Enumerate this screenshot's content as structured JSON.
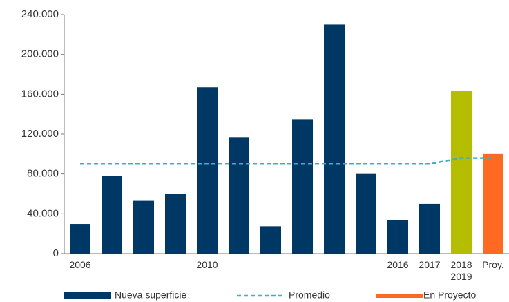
{
  "chart_data": {
    "type": "bar",
    "categories": [
      "2006",
      null,
      null,
      null,
      "2010",
      null,
      null,
      null,
      null,
      null,
      "2016",
      "2017",
      "2018 2019",
      "Proy."
    ],
    "series": [
      {
        "name": "Nueva superficie",
        "color": "#003865",
        "values": [
          29800,
          78000,
          53000,
          60000,
          167000,
          117000,
          27500,
          135000,
          230000,
          80000,
          34000,
          50000,
          163000,
          100000
        ],
        "colors": [
          "#003865",
          "#003865",
          "#003865",
          "#003865",
          "#003865",
          "#003865",
          "#003865",
          "#003865",
          "#003865",
          "#003865",
          "#003865",
          "#003865",
          "#b5bd00",
          "#ff6a23"
        ]
      },
      {
        "name": "Promedio",
        "type": "line",
        "color": "#3bb0c9",
        "values": [
          90000,
          90000,
          90000,
          90000,
          90000,
          90000,
          90000,
          90000,
          90000,
          90000,
          90000,
          90000,
          96000,
          96000
        ]
      }
    ],
    "legend_extra": {
      "name": "En Proyecto",
      "color": "#ff6a23"
    },
    "ylim": [
      0,
      240000
    ],
    "yticks": [
      0,
      {
        "value": 40000,
        "label": "40.000"
      },
      {
        "value": 80000,
        "label": "80.000"
      },
      {
        "value": 120000,
        "label": "120.000"
      },
      {
        "value": 160000,
        "label": "160.000"
      },
      {
        "value": 200000,
        "label": "200.000"
      },
      {
        "value": 240000,
        "label": "240.000"
      }
    ],
    "grid": false,
    "legend": "bottom"
  }
}
